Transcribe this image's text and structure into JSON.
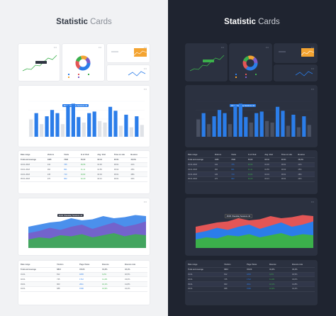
{
  "page": {
    "title_bold": "Statistic",
    "title_light": "Cards"
  },
  "cards": {
    "time_on_site": {
      "title": "Time on Site"
    },
    "age_groups": {
      "title": "Age Groups"
    },
    "bounce_rate": {
      "title": "Bounce Rate"
    },
    "time_on_site2": {
      "title": "Time on site"
    },
    "sessions": {
      "title": "Sessions",
      "tooltip": "18.06. Weekday Sessions 44"
    },
    "table1": {
      "title": "Table 1"
    },
    "live_traffic": {
      "title": "Live Traffic",
      "tooltip": "18.06. Weekday Sessions 44"
    },
    "table2": {
      "title": "Table 2"
    }
  },
  "colors": {
    "blue": "#2b7de9",
    "green": "#3bb04b",
    "red": "#e35656",
    "orange": "#f4a431",
    "purple": "#7a5cc7",
    "grey_bar_light": "#dfe2e7",
    "grey_bar_dark": "#4a5163"
  },
  "icons": [
    "more-dots-icon",
    "refresh-icon",
    "settings-icon",
    "bar-chart-icon"
  ],
  "table1": {
    "headers": [
      "Date range",
      "Visitors",
      "Visits",
      "% of Visit",
      "Avg. Visit",
      "Time on site",
      "Bounce"
    ],
    "rows": [
      [
        "Total and average",
        "1365",
        "7292",
        "50,00",
        "02:10",
        "00:01",
        "46,3%"
      ],
      [
        "02.01.2018",
        "142",
        "765",
        "39,56",
        "01:30",
        "00:01",
        "41%"
      ],
      [
        "03.01.2018",
        "160",
        "821",
        "41,11",
        "01:55",
        "00:02",
        "45%"
      ],
      [
        "04.01.2018",
        "145",
        "710",
        "40,82",
        "02:04",
        "00:01",
        "48%"
      ],
      [
        "05.01.2018",
        "170",
        "902",
        "42,20",
        "02:21",
        "00:01",
        "44%"
      ]
    ]
  },
  "table2": {
    "headers": [
      "Date range",
      "Visitors",
      "Page Views",
      "Bounce",
      "Bounce rate"
    ],
    "rows": [
      [
        "Total and average",
        "6812",
        "15123",
        "10,3%",
        "42,1%"
      ],
      [
        "01.01.",
        "812",
        "1845",
        "9,2%",
        "40,5%"
      ],
      [
        "02.01.",
        "745",
        "1712",
        "11,4%",
        "43,0%"
      ],
      [
        "03.01.",
        "903",
        "2011",
        "10,1%",
        "41,8%"
      ],
      [
        "04.01.",
        "688",
        "1590",
        "10,9%",
        "44,2%"
      ]
    ]
  },
  "chart_data": [
    {
      "type": "bar",
      "values": [
        22,
        30,
        16,
        26,
        34,
        30,
        16,
        40,
        42,
        25,
        18,
        30,
        32,
        20,
        18,
        38,
        33,
        14,
        28,
        12,
        26,
        15
      ],
      "highlight": [
        0,
        1,
        0,
        1,
        1,
        1,
        0,
        1,
        1,
        1,
        0,
        1,
        1,
        0,
        0,
        1,
        1,
        0,
        1,
        0,
        1,
        0
      ]
    },
    {
      "type": "pie",
      "values": [
        35,
        20,
        15,
        15,
        15
      ]
    },
    {
      "type": "line",
      "values": [
        10,
        12,
        11,
        15,
        14,
        18,
        22,
        20,
        25,
        28
      ]
    },
    {
      "type": "area",
      "series": [
        {
          "values": [
            20,
            22,
            24,
            25,
            28,
            26,
            27,
            30,
            28,
            29,
            31,
            30
          ]
        },
        {
          "values": [
            14,
            16,
            19,
            17,
            20,
            22,
            18,
            21,
            24,
            20,
            22,
            25
          ]
        },
        {
          "values": [
            8,
            10,
            9,
            12,
            11,
            13,
            10,
            12,
            14,
            11,
            13,
            12
          ]
        }
      ]
    }
  ]
}
